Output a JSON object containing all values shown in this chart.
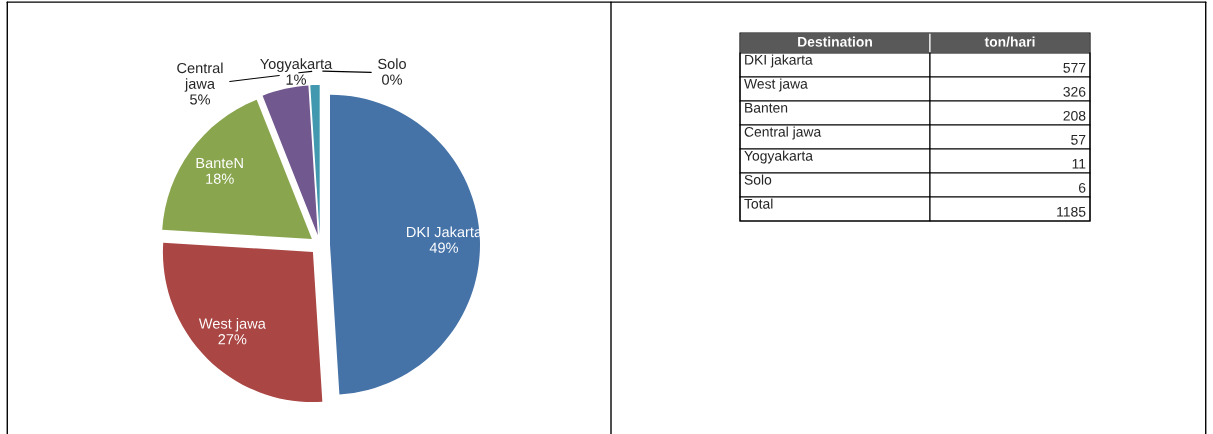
{
  "chart_data": [
    {
      "type": "pie",
      "categories": [
        "DKI Jakarta",
        "West jawa",
        "BanteN",
        "Central jawa",
        "Yogyakarta",
        "Solo"
      ],
      "values": [
        49,
        27,
        18,
        5,
        1,
        0
      ],
      "value_labels": [
        "49%",
        "27%",
        "18%",
        "5%",
        "1%",
        "0%"
      ],
      "colors": [
        "#4572a7",
        "#aa4643",
        "#89a54e",
        "#71588f",
        "#4198af",
        "#db843d"
      ]
    },
    {
      "type": "other",
      "annotations": [
        "Destination",
        "ton/hari",
        "DKI jakarta",
        "577",
        "West jawa",
        "326",
        "Banten",
        "208",
        "Central jawa",
        "57",
        "Yogyakarta",
        "11",
        "Solo",
        "6",
        "Total",
        "1185"
      ]
    }
  ]
}
